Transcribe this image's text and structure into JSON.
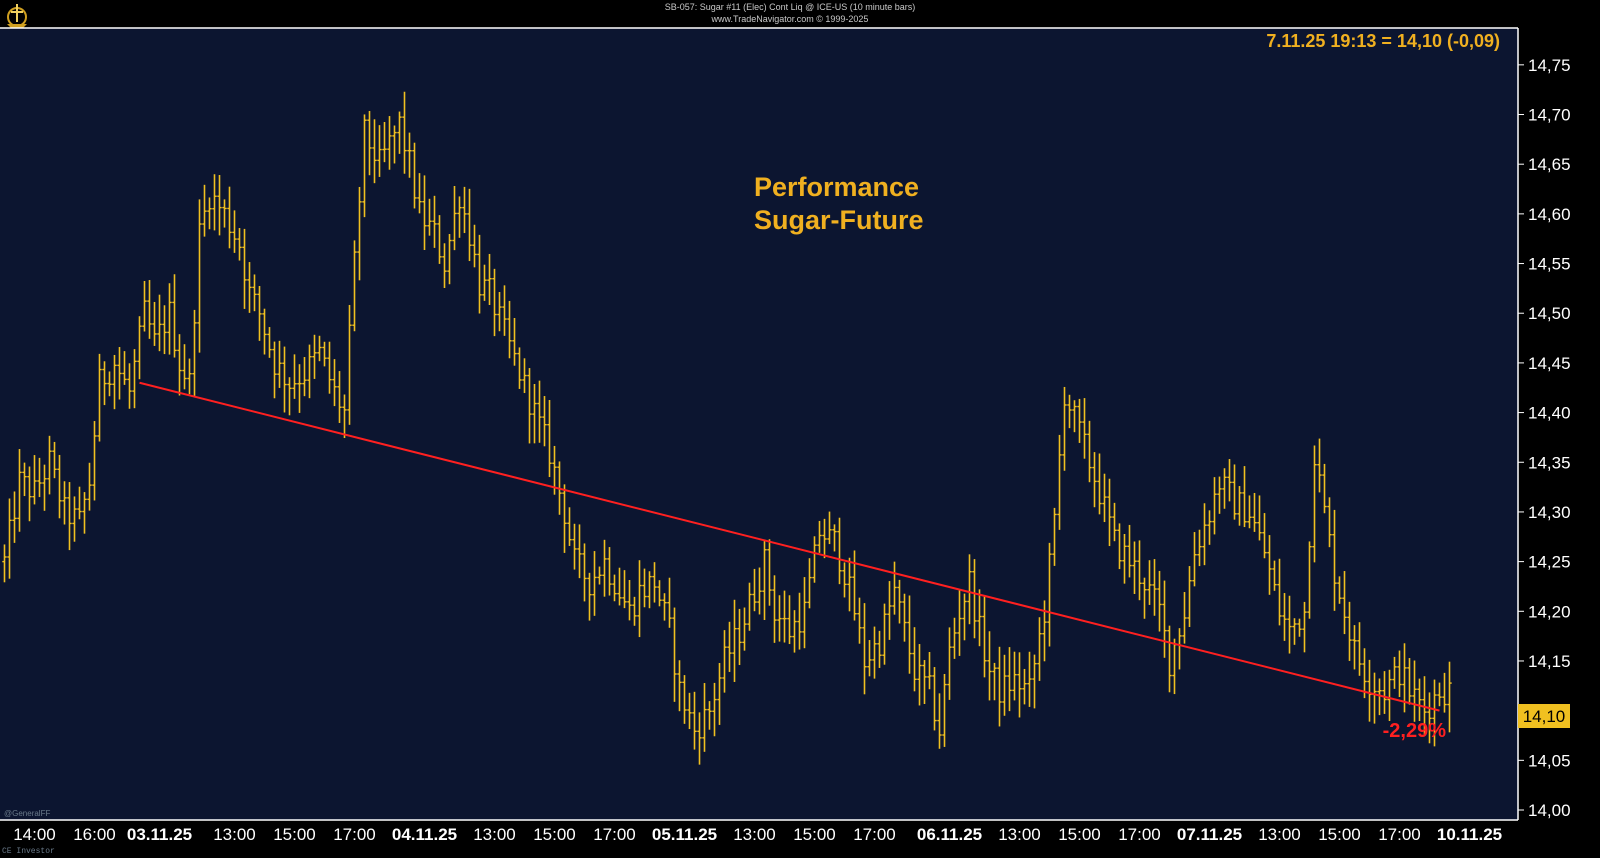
{
  "header": {
    "line1": "SB-057: Sugar #11 (Elec) Cont Liq @ ICE-US (10 minute bars)",
    "line2": "www.TradeNavigator.com © 1999-2025"
  },
  "footer": {
    "brand": "CE Investor"
  },
  "watermark": "@GeneralFF",
  "colors": {
    "background": "#0c1530",
    "bars": "#f0c020",
    "trendline": "#ff2020",
    "text": "#ffffff",
    "label_bg": "#f0c020"
  },
  "chart_data": {
    "type": "bar",
    "title": "Performance\nSugar-Future",
    "title_lines": [
      "Performance",
      "Sugar-Future"
    ],
    "quote_label": "7.11.25 19:13 = 14,10 (-0,09)",
    "last_price_label": "14,10",
    "performance_label": "-2,29%",
    "ylim": [
      14.0,
      14.775
    ],
    "y_ticks": [
      "14,00",
      "14,05",
      "14,10",
      "14,15",
      "14,20",
      "14,25",
      "14,30",
      "14,35",
      "14,40",
      "14,45",
      "14,50",
      "14,55",
      "14,60",
      "14,65",
      "14,70",
      "14,75"
    ],
    "y_tick_values": [
      14.0,
      14.05,
      14.1,
      14.15,
      14.2,
      14.25,
      14.3,
      14.35,
      14.4,
      14.45,
      14.5,
      14.55,
      14.6,
      14.65,
      14.7,
      14.75
    ],
    "x_tick_labels": [
      {
        "label": "14:00",
        "bar": 6,
        "bold": false
      },
      {
        "label": "16:00",
        "bar": 18,
        "bold": false
      },
      {
        "label": "03.11.25",
        "bar": 31,
        "bold": true
      },
      {
        "label": "13:00",
        "bar": 46,
        "bold": false
      },
      {
        "label": "15:00",
        "bar": 58,
        "bold": false
      },
      {
        "label": "17:00",
        "bar": 70,
        "bold": false
      },
      {
        "label": "04.11.25",
        "bar": 84,
        "bold": true
      },
      {
        "label": "13:00",
        "bar": 98,
        "bold": false
      },
      {
        "label": "15:00",
        "bar": 110,
        "bold": false
      },
      {
        "label": "17:00",
        "bar": 122,
        "bold": false
      },
      {
        "label": "05.11.25",
        "bar": 136,
        "bold": true
      },
      {
        "label": "13:00",
        "bar": 150,
        "bold": false
      },
      {
        "label": "15:00",
        "bar": 162,
        "bold": false
      },
      {
        "label": "17:00",
        "bar": 174,
        "bold": false
      },
      {
        "label": "06.11.25",
        "bar": 189,
        "bold": true
      },
      {
        "label": "13:00",
        "bar": 203,
        "bold": false
      },
      {
        "label": "15:00",
        "bar": 215,
        "bold": false
      },
      {
        "label": "17:00",
        "bar": 227,
        "bold": false
      },
      {
        "label": "07.11.25",
        "bar": 241,
        "bold": true
      },
      {
        "label": "13:00",
        "bar": 255,
        "bold": false
      },
      {
        "label": "15:00",
        "bar": 267,
        "bold": false
      },
      {
        "label": "17:00",
        "bar": 279,
        "bold": false
      },
      {
        "label": "10.11.25",
        "bar": 293,
        "bold": true
      }
    ],
    "trendline": {
      "start": {
        "bar": 27,
        "value": 14.43
      },
      "end": {
        "bar": 287,
        "value": 14.1
      }
    },
    "close_points": [
      [
        0,
        14.25
      ],
      [
        3,
        14.33
      ],
      [
        6,
        14.32
      ],
      [
        9,
        14.35
      ],
      [
        12,
        14.3
      ],
      [
        15,
        14.29
      ],
      [
        17,
        14.33
      ],
      [
        19,
        14.43
      ],
      [
        22,
        14.45
      ],
      [
        25,
        14.42
      ],
      [
        28,
        14.5
      ],
      [
        30,
        14.47
      ],
      [
        33,
        14.5
      ],
      [
        35,
        14.45
      ],
      [
        37,
        14.43
      ],
      [
        39,
        14.58
      ],
      [
        41,
        14.62
      ],
      [
        44,
        14.6
      ],
      [
        47,
        14.57
      ],
      [
        49,
        14.52
      ],
      [
        51,
        14.5
      ],
      [
        54,
        14.45
      ],
      [
        57,
        14.43
      ],
      [
        60,
        14.44
      ],
      [
        63,
        14.46
      ],
      [
        66,
        14.42
      ],
      [
        68,
        14.4
      ],
      [
        70,
        14.55
      ],
      [
        72,
        14.68
      ],
      [
        75,
        14.65
      ],
      [
        77,
        14.67
      ],
      [
        79,
        14.69
      ],
      [
        81,
        14.65
      ],
      [
        83,
        14.6
      ],
      [
        86,
        14.58
      ],
      [
        88,
        14.55
      ],
      [
        91,
        14.62
      ],
      [
        93,
        14.58
      ],
      [
        95,
        14.53
      ],
      [
        97,
        14.52
      ],
      [
        100,
        14.48
      ],
      [
        103,
        14.44
      ],
      [
        106,
        14.4
      ],
      [
        109,
        14.36
      ],
      [
        112,
        14.3
      ],
      [
        114,
        14.25
      ],
      [
        117,
        14.23
      ],
      [
        120,
        14.25
      ],
      [
        122,
        14.23
      ],
      [
        125,
        14.2
      ],
      [
        127,
        14.22
      ],
      [
        130,
        14.23
      ],
      [
        133,
        14.18
      ],
      [
        135,
        14.12
      ],
      [
        138,
        14.08
      ],
      [
        141,
        14.1
      ],
      [
        144,
        14.15
      ],
      [
        147,
        14.18
      ],
      [
        150,
        14.22
      ],
      [
        152,
        14.25
      ],
      [
        154,
        14.2
      ],
      [
        157,
        14.18
      ],
      [
        160,
        14.2
      ],
      [
        163,
        14.28
      ],
      [
        166,
        14.27
      ],
      [
        168,
        14.24
      ],
      [
        170,
        14.2
      ],
      [
        172,
        14.15
      ],
      [
        175,
        14.17
      ],
      [
        178,
        14.22
      ],
      [
        180,
        14.18
      ],
      [
        182,
        14.14
      ],
      [
        185,
        14.12
      ],
      [
        187,
        14.08
      ],
      [
        189,
        14.16
      ],
      [
        191,
        14.2
      ],
      [
        193,
        14.23
      ],
      [
        195,
        14.18
      ],
      [
        197,
        14.14
      ],
      [
        199,
        14.12
      ],
      [
        202,
        14.13
      ],
      [
        205,
        14.12
      ],
      [
        208,
        14.2
      ],
      [
        210,
        14.29
      ],
      [
        212,
        14.42
      ],
      [
        215,
        14.38
      ],
      [
        217,
        14.35
      ],
      [
        219,
        14.32
      ],
      [
        222,
        14.27
      ],
      [
        225,
        14.25
      ],
      [
        228,
        14.23
      ],
      [
        231,
        14.2
      ],
      [
        233,
        14.15
      ],
      [
        236,
        14.2
      ],
      [
        238,
        14.26
      ],
      [
        241,
        14.3
      ],
      [
        243,
        14.33
      ],
      [
        246,
        14.31
      ],
      [
        249,
        14.3
      ],
      [
        252,
        14.26
      ],
      [
        255,
        14.2
      ],
      [
        257,
        14.18
      ],
      [
        260,
        14.2
      ],
      [
        262,
        14.36
      ],
      [
        264,
        14.3
      ],
      [
        266,
        14.24
      ],
      [
        268,
        14.2
      ],
      [
        270,
        14.16
      ],
      [
        273,
        14.13
      ],
      [
        276,
        14.12
      ],
      [
        279,
        14.14
      ],
      [
        281,
        14.12
      ],
      [
        284,
        14.1
      ],
      [
        287,
        14.12
      ]
    ]
  }
}
